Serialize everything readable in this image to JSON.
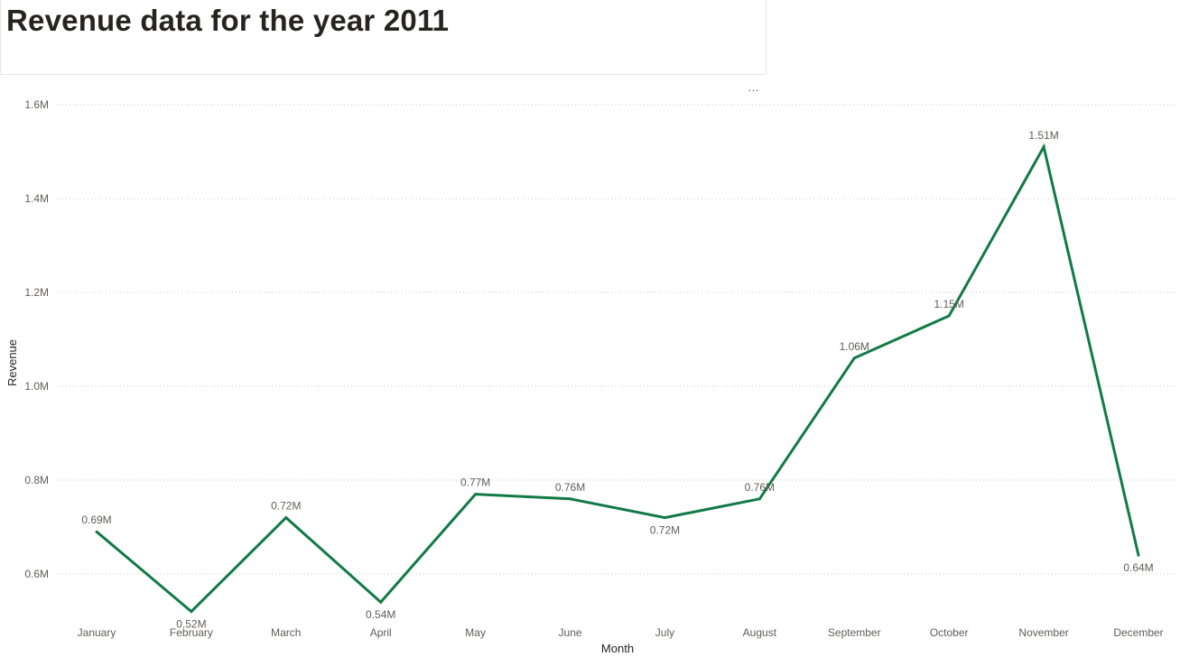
{
  "header": {
    "title": "Revenue data for the year 2011"
  },
  "visual_menu": {
    "label": "…"
  },
  "colors": {
    "line": "#117a46",
    "grid": "#c8c6c4",
    "text": "#605e5c"
  },
  "chart_data": {
    "type": "line",
    "title": "Revenue data for the year 2011",
    "xlabel": "Month",
    "ylabel": "Revenue",
    "categories": [
      "January",
      "February",
      "March",
      "April",
      "May",
      "June",
      "July",
      "August",
      "September",
      "October",
      "November",
      "December"
    ],
    "series": [
      {
        "values": [
          690000,
          520000,
          720000,
          540000,
          770000,
          760000,
          720000,
          760000,
          1060000,
          1150000,
          1510000,
          640000
        ],
        "labels": [
          "0.69M",
          "0.52M",
          "0.72M",
          "0.54M",
          "0.77M",
          "0.76M",
          "0.72M",
          "0.76M",
          "1.06M",
          "1.15M",
          "1.51M",
          "0.64M"
        ]
      }
    ],
    "ylim": [
      0.6,
      1.6
    ],
    "yticks": [
      "0.6M",
      "0.8M",
      "1.0M",
      "1.2M",
      "1.4M",
      "1.6M"
    ],
    "grid": true,
    "legend": "none"
  }
}
